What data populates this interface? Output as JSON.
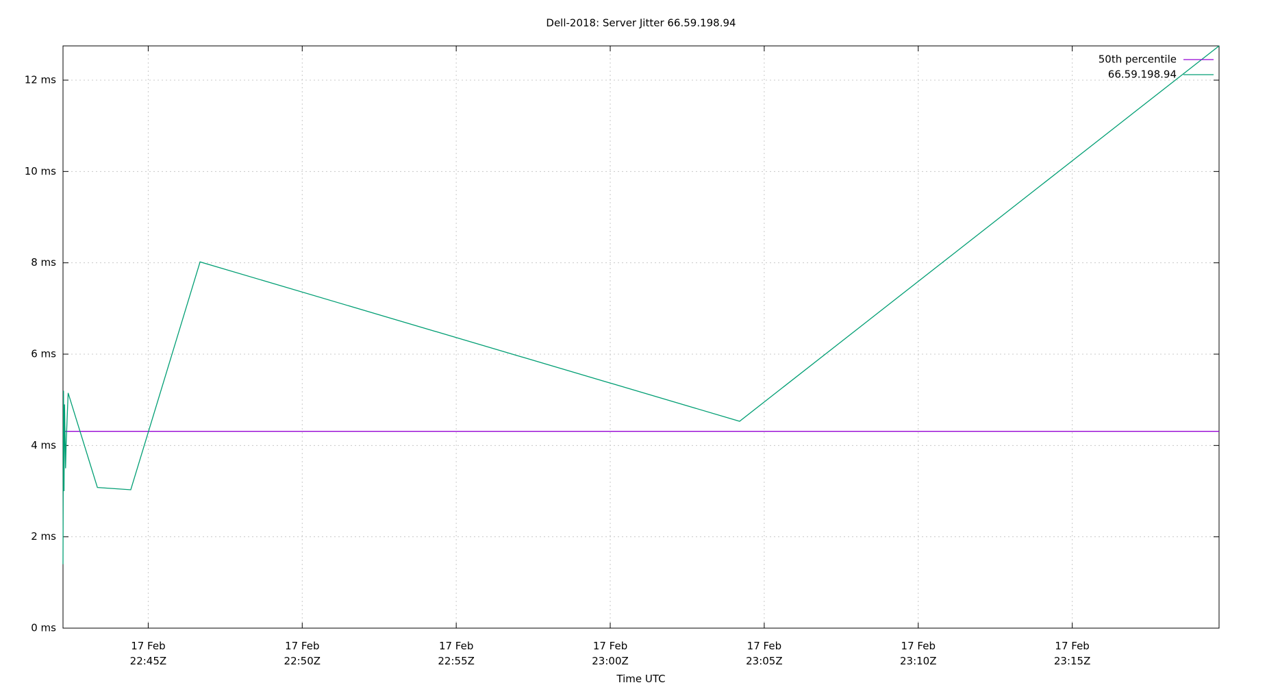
{
  "chart_data": {
    "type": "line",
    "title": "Dell-2018: Server Jitter 66.59.198.94",
    "x_label": "Time UTC",
    "xlim": [
      "17 Feb 22:42:14Z",
      "17 Feb 23:19:46Z"
    ],
    "xticks": [
      "17 Feb 22:45Z",
      "17 Feb 22:50Z",
      "17 Feb 22:55Z",
      "17 Feb 23:00Z",
      "17 Feb 23:05Z",
      "17 Feb 23:10Z",
      "17 Feb 23:15Z"
    ],
    "ylim": [
      0,
      12.75
    ],
    "yticks": [
      {
        "value": 0,
        "label": "0 ms"
      },
      {
        "value": 2,
        "label": "2 ms"
      },
      {
        "value": 4,
        "label": "4 ms"
      },
      {
        "value": 6,
        "label": "6 ms"
      },
      {
        "value": 8,
        "label": "8 ms"
      },
      {
        "value": 10,
        "label": "10 ms"
      },
      {
        "value": 12,
        "label": "12 ms"
      }
    ],
    "grid": true,
    "legend": "top-right",
    "series": [
      {
        "name": "50th percentile",
        "color": "#9400d3",
        "x": [
          "17 Feb 22:42:14Z",
          "17 Feb 23:19:46Z"
        ],
        "values": [
          4.31,
          4.31
        ]
      },
      {
        "name": "66.59.198.94",
        "color": "#009e73",
        "x": [
          "17 Feb 22:42:14Z",
          "17 Feb 22:42:15Z",
          "17 Feb 22:42:16Z",
          "17 Feb 22:42:17Z",
          "17 Feb 22:42:19Z",
          "17 Feb 22:42:20Z",
          "17 Feb 22:42:24Z",
          "17 Feb 22:43:21Z",
          "17 Feb 22:44:26Z",
          "17 Feb 22:46:41Z",
          "17 Feb 23:04:12Z",
          "17 Feb 23:19:46Z"
        ],
        "values": [
          1.4,
          5.2,
          3.0,
          4.9,
          3.5,
          4.0,
          5.15,
          3.08,
          3.03,
          8.02,
          4.53,
          12.75
        ]
      }
    ]
  }
}
